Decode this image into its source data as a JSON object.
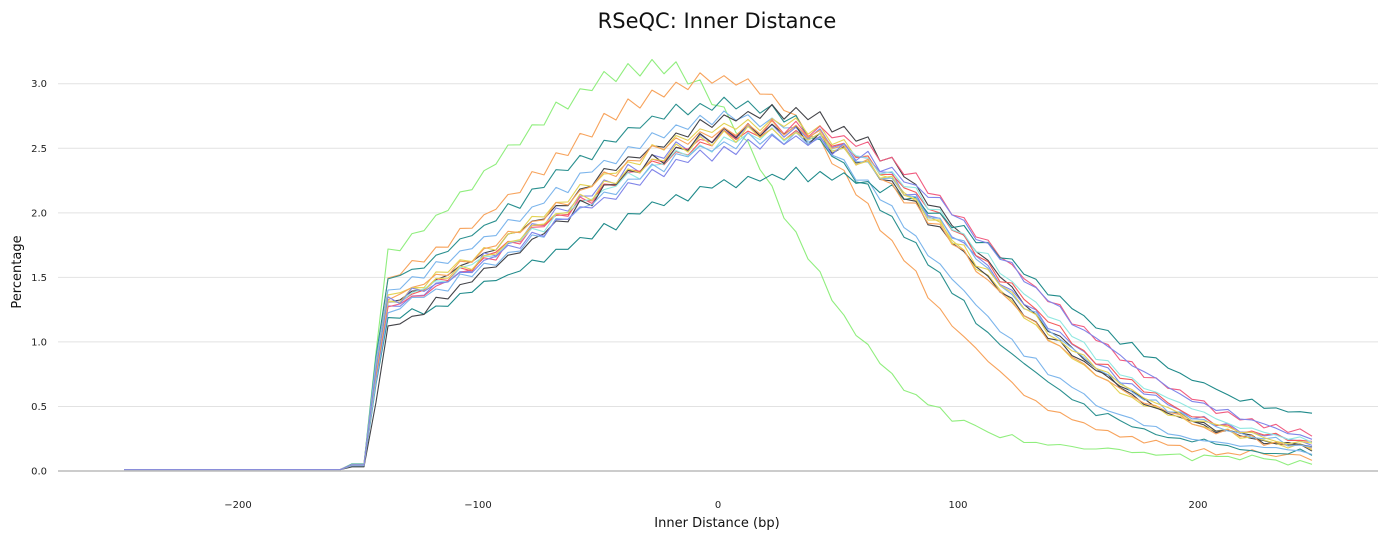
{
  "chart_data": {
    "type": "line",
    "title": "RSeQC: Inner Distance",
    "xlabel": "Inner Distance (bp)",
    "ylabel": "Percentage",
    "xlim": [
      -275,
      275
    ],
    "ylim": [
      0,
      3.3
    ],
    "x_ticks": [
      -200,
      -100,
      0,
      100,
      200
    ],
    "x_tick_labels": [
      "−200",
      "−100",
      "0",
      "100",
      "200"
    ],
    "y_ticks": [
      0,
      0.5,
      1,
      1.5,
      2,
      2.5,
      3
    ],
    "y_tick_labels": [
      "0.0",
      "0.5",
      "1.0",
      "1.5",
      "2.0",
      "2.5",
      "3.0"
    ],
    "grid": "horizontal",
    "legend": "none",
    "x_range": [
      -247.5,
      247.5
    ],
    "x_step": 5,
    "series": [
      {
        "color": "#90ee7e",
        "plateau": 1.12,
        "peak": 3.14,
        "peak_x": -25,
        "left_w": 70,
        "right_w": 48,
        "tail": 0.02
      },
      {
        "color": "#f7a35c",
        "plateau": 1.02,
        "peak": 3.03,
        "peak_x": 0,
        "left_w": 80,
        "right_w": 62,
        "tail": 0.05
      },
      {
        "color": "#2b908f",
        "plateau": 1.08,
        "peak": 2.85,
        "peak_x": 5,
        "left_w": 82,
        "right_w": 68,
        "tail": 0.06
      },
      {
        "color": "#7cb5ec",
        "plateau": 1.04,
        "peak": 2.74,
        "peak_x": 10,
        "left_w": 84,
        "right_w": 70,
        "tail": 0.07
      },
      {
        "color": "#434348",
        "plateau": 0.92,
        "peak": 2.78,
        "peak_x": 25,
        "left_w": 92,
        "right_w": 75,
        "tail": 0.08
      },
      {
        "color": "#e4d354",
        "plateau": 0.97,
        "peak": 2.7,
        "peak_x": 20,
        "left_w": 90,
        "right_w": 76,
        "tail": 0.09
      },
      {
        "color": "#8085e9",
        "plateau": 0.88,
        "peak": 2.65,
        "peak_x": 22,
        "left_w": 92,
        "right_w": 80,
        "tail": 0.1
      },
      {
        "color": "#f15c80",
        "plateau": 0.86,
        "peak": 2.66,
        "peak_x": 28,
        "left_w": 96,
        "right_w": 84,
        "tail": 0.13
      },
      {
        "color": "#f45b5b",
        "plateau": 0.9,
        "peak": 2.62,
        "peak_x": 24,
        "left_w": 94,
        "right_w": 80,
        "tail": 0.1
      },
      {
        "color": "#91e8e1",
        "plateau": 0.95,
        "peak": 2.6,
        "peak_x": 26,
        "left_w": 94,
        "right_w": 80,
        "tail": 0.11
      },
      {
        "color": "#1f8a8a",
        "plateau": 0.82,
        "peak": 2.3,
        "peak_x": 35,
        "left_w": 100,
        "right_w": 90,
        "tail": 0.22
      },
      {
        "color": "#434348",
        "plateau": 0.65,
        "peak": 2.64,
        "peak_x": 20,
        "left_w": 92,
        "right_w": 80,
        "tail": 0.1
      },
      {
        "color": "#f7a35c",
        "plateau": 0.94,
        "peak": 2.67,
        "peak_x": 18,
        "left_w": 90,
        "right_w": 78,
        "tail": 0.08
      },
      {
        "color": "#7cb5ec",
        "plateau": 0.84,
        "peak": 2.58,
        "peak_x": 25,
        "left_w": 94,
        "right_w": 78,
        "tail": 0.09
      },
      {
        "color": "#e4d354",
        "plateau": 0.93,
        "peak": 2.62,
        "peak_x": 22,
        "left_w": 92,
        "right_w": 78,
        "tail": 0.1
      },
      {
        "color": "#8085e9",
        "plateau": 0.96,
        "peak": 2.55,
        "peak_x": 30,
        "left_w": 96,
        "right_w": 84,
        "tail": 0.12
      }
    ]
  }
}
